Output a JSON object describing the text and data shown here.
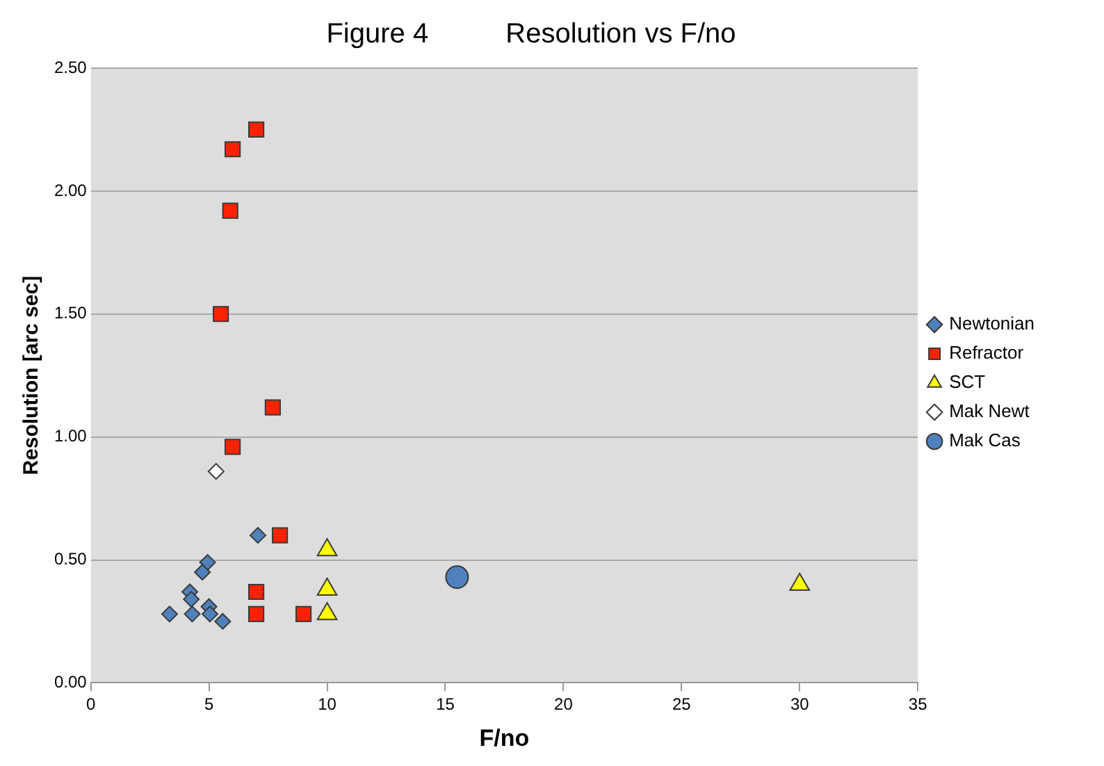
{
  "chart_data": {
    "type": "scatter",
    "title": "Figure 4          Resolution vs F/no",
    "xlabel": "F/no",
    "ylabel": "Resolution [arc sec]",
    "xlim": [
      0,
      35
    ],
    "xticks": [
      0,
      5,
      10,
      15,
      20,
      25,
      30,
      35
    ],
    "ylim": [
      0,
      2.5
    ],
    "yticks": [
      {
        "value": 0,
        "label": "0.00"
      },
      {
        "value": 0.5,
        "label": "0.50"
      },
      {
        "value": 1,
        "label": "1.00"
      },
      {
        "value": 1.5,
        "label": "1.50"
      },
      {
        "value": 2,
        "label": "2.00"
      },
      {
        "value": 2.5,
        "label": "2.50"
      }
    ],
    "grid": "y",
    "legend": "right",
    "series": [
      {
        "name": "Newtonian",
        "color": "#4f81bd",
        "marker": "diamond",
        "x": [
          7.07,
          4.94,
          4.72,
          4.19,
          4.25,
          3.33,
          4.29,
          5.0,
          5.04,
          5.58
        ],
        "values": [
          0.6,
          0.49,
          0.45,
          0.37,
          0.34,
          0.28,
          0.28,
          0.31,
          0.28,
          0.25
        ]
      },
      {
        "name": "Refractor",
        "color": "#ff2200",
        "marker": "square",
        "x": [
          8.0,
          7.0,
          7.0,
          9.0,
          7.0,
          6.0,
          5.9,
          5.5,
          7.7,
          6.0
        ],
        "values": [
          0.6,
          0.37,
          0.28,
          0.28,
          2.25,
          2.17,
          1.92,
          1.5,
          1.12,
          0.96
        ]
      },
      {
        "name": "SCT",
        "color": "#ffff00",
        "marker": "triangle",
        "x": [
          10,
          10,
          10,
          30
        ],
        "values": [
          0.54,
          0.38,
          0.28,
          0.4
        ]
      },
      {
        "name": "Mak Newt",
        "color": "#ffffff",
        "marker": "diamond",
        "x": [
          5.3
        ],
        "values": [
          0.86
        ]
      },
      {
        "name": "Mak Cas",
        "color": "#4f81bd",
        "marker": "circle",
        "x": [
          15.5
        ],
        "values": [
          0.43
        ]
      }
    ]
  }
}
